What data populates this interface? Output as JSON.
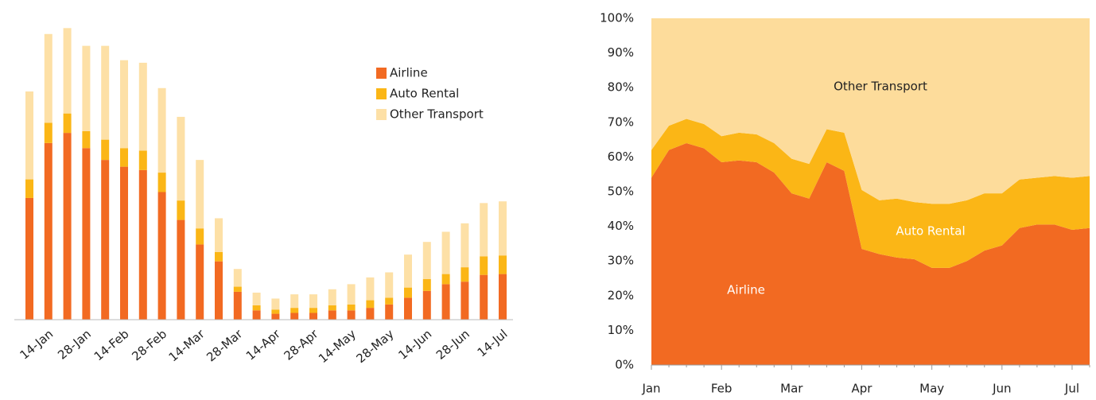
{
  "chart_data": [
    {
      "type": "bar",
      "stacked": true,
      "categories": [
        null,
        "14-Jan",
        null,
        "28-Jan",
        null,
        "14-Feb",
        null,
        "28-Feb",
        null,
        "14-Mar",
        null,
        "28-Mar",
        null,
        "14-Apr",
        null,
        "28-Apr",
        null,
        "14-May",
        null,
        "28-May",
        null,
        "14-Jun",
        null,
        "28-Jun",
        null,
        "14-Jul"
      ],
      "ylim": [
        0,
        350
      ],
      "series": [
        {
          "name": "Airline",
          "color": "#f26a22",
          "values": [
            144,
            209,
            221,
            203,
            189,
            181,
            177,
            151,
            118,
            89,
            69,
            33,
            11,
            7,
            8,
            8,
            11,
            11,
            14,
            18,
            26,
            34,
            42,
            45,
            53,
            54
          ]
        },
        {
          "name": "Auto Rental",
          "color": "#fbb616",
          "values": [
            22,
            24,
            23,
            20,
            24,
            22,
            23,
            23,
            23,
            19,
            11,
            6,
            6,
            5,
            6,
            6,
            6,
            7,
            9,
            8,
            12,
            14,
            12,
            17,
            22,
            22
          ]
        },
        {
          "name": "Other Transport",
          "color": "#fde0a6",
          "values": [
            104,
            105,
            101,
            101,
            111,
            104,
            104,
            100,
            99,
            81,
            40,
            21,
            15,
            13,
            16,
            16,
            19,
            24,
            27,
            30,
            39,
            44,
            50,
            52,
            63,
            64
          ]
        }
      ],
      "legend": "upper right"
    },
    {
      "type": "area",
      "stacked": true,
      "categories": [
        "Jan",
        null,
        null,
        null,
        "Feb",
        null,
        null,
        null,
        "Mar",
        null,
        null,
        null,
        "Apr",
        null,
        null,
        null,
        "May",
        null,
        null,
        null,
        "Jun",
        null,
        null,
        null,
        "Jul",
        null
      ],
      "ylim": [
        0,
        100
      ],
      "yticks": [
        {
          "value": 0,
          "label": "0%"
        },
        {
          "value": 10,
          "label": "10%"
        },
        {
          "value": 20,
          "label": "20%"
        },
        {
          "value": 30,
          "label": "30%"
        },
        {
          "value": 40,
          "label": "40%"
        },
        {
          "value": 50,
          "label": "50%"
        },
        {
          "value": 60,
          "label": "60%"
        },
        {
          "value": 70,
          "label": "70%"
        },
        {
          "value": 80,
          "label": "80%"
        },
        {
          "value": 90,
          "label": "90%"
        },
        {
          "value": 100,
          "label": "100%"
        }
      ],
      "series": [
        {
          "name": "Airline",
          "color": "#f26a22",
          "values": [
            54,
            62,
            64,
            62.5,
            58.5,
            59,
            58.5,
            55.5,
            49.5,
            48,
            58.5,
            56,
            33.5,
            32,
            31,
            30.5,
            28,
            28,
            30,
            33,
            34.5,
            39.5,
            40.5,
            40.5,
            39,
            39.5
          ]
        },
        {
          "name": "Auto Rental",
          "color": "#fbb616",
          "values": [
            8,
            7,
            7,
            7,
            7.5,
            8,
            8,
            8.5,
            10,
            10,
            9.5,
            11,
            17,
            15.5,
            17,
            16.5,
            18.5,
            18.5,
            17.5,
            16.5,
            15,
            14,
            13.5,
            14,
            15,
            15
          ]
        },
        {
          "name": "Other Transport",
          "color": "#fddc9b",
          "values": [
            38,
            31,
            29,
            30.5,
            34,
            33,
            33.5,
            36,
            40.5,
            42,
            32,
            33,
            49.5,
            52.5,
            52,
            53,
            53.5,
            53.5,
            52.5,
            50.5,
            50.5,
            46.5,
            46,
            45.5,
            46,
            45.5
          ]
        }
      ]
    }
  ]
}
